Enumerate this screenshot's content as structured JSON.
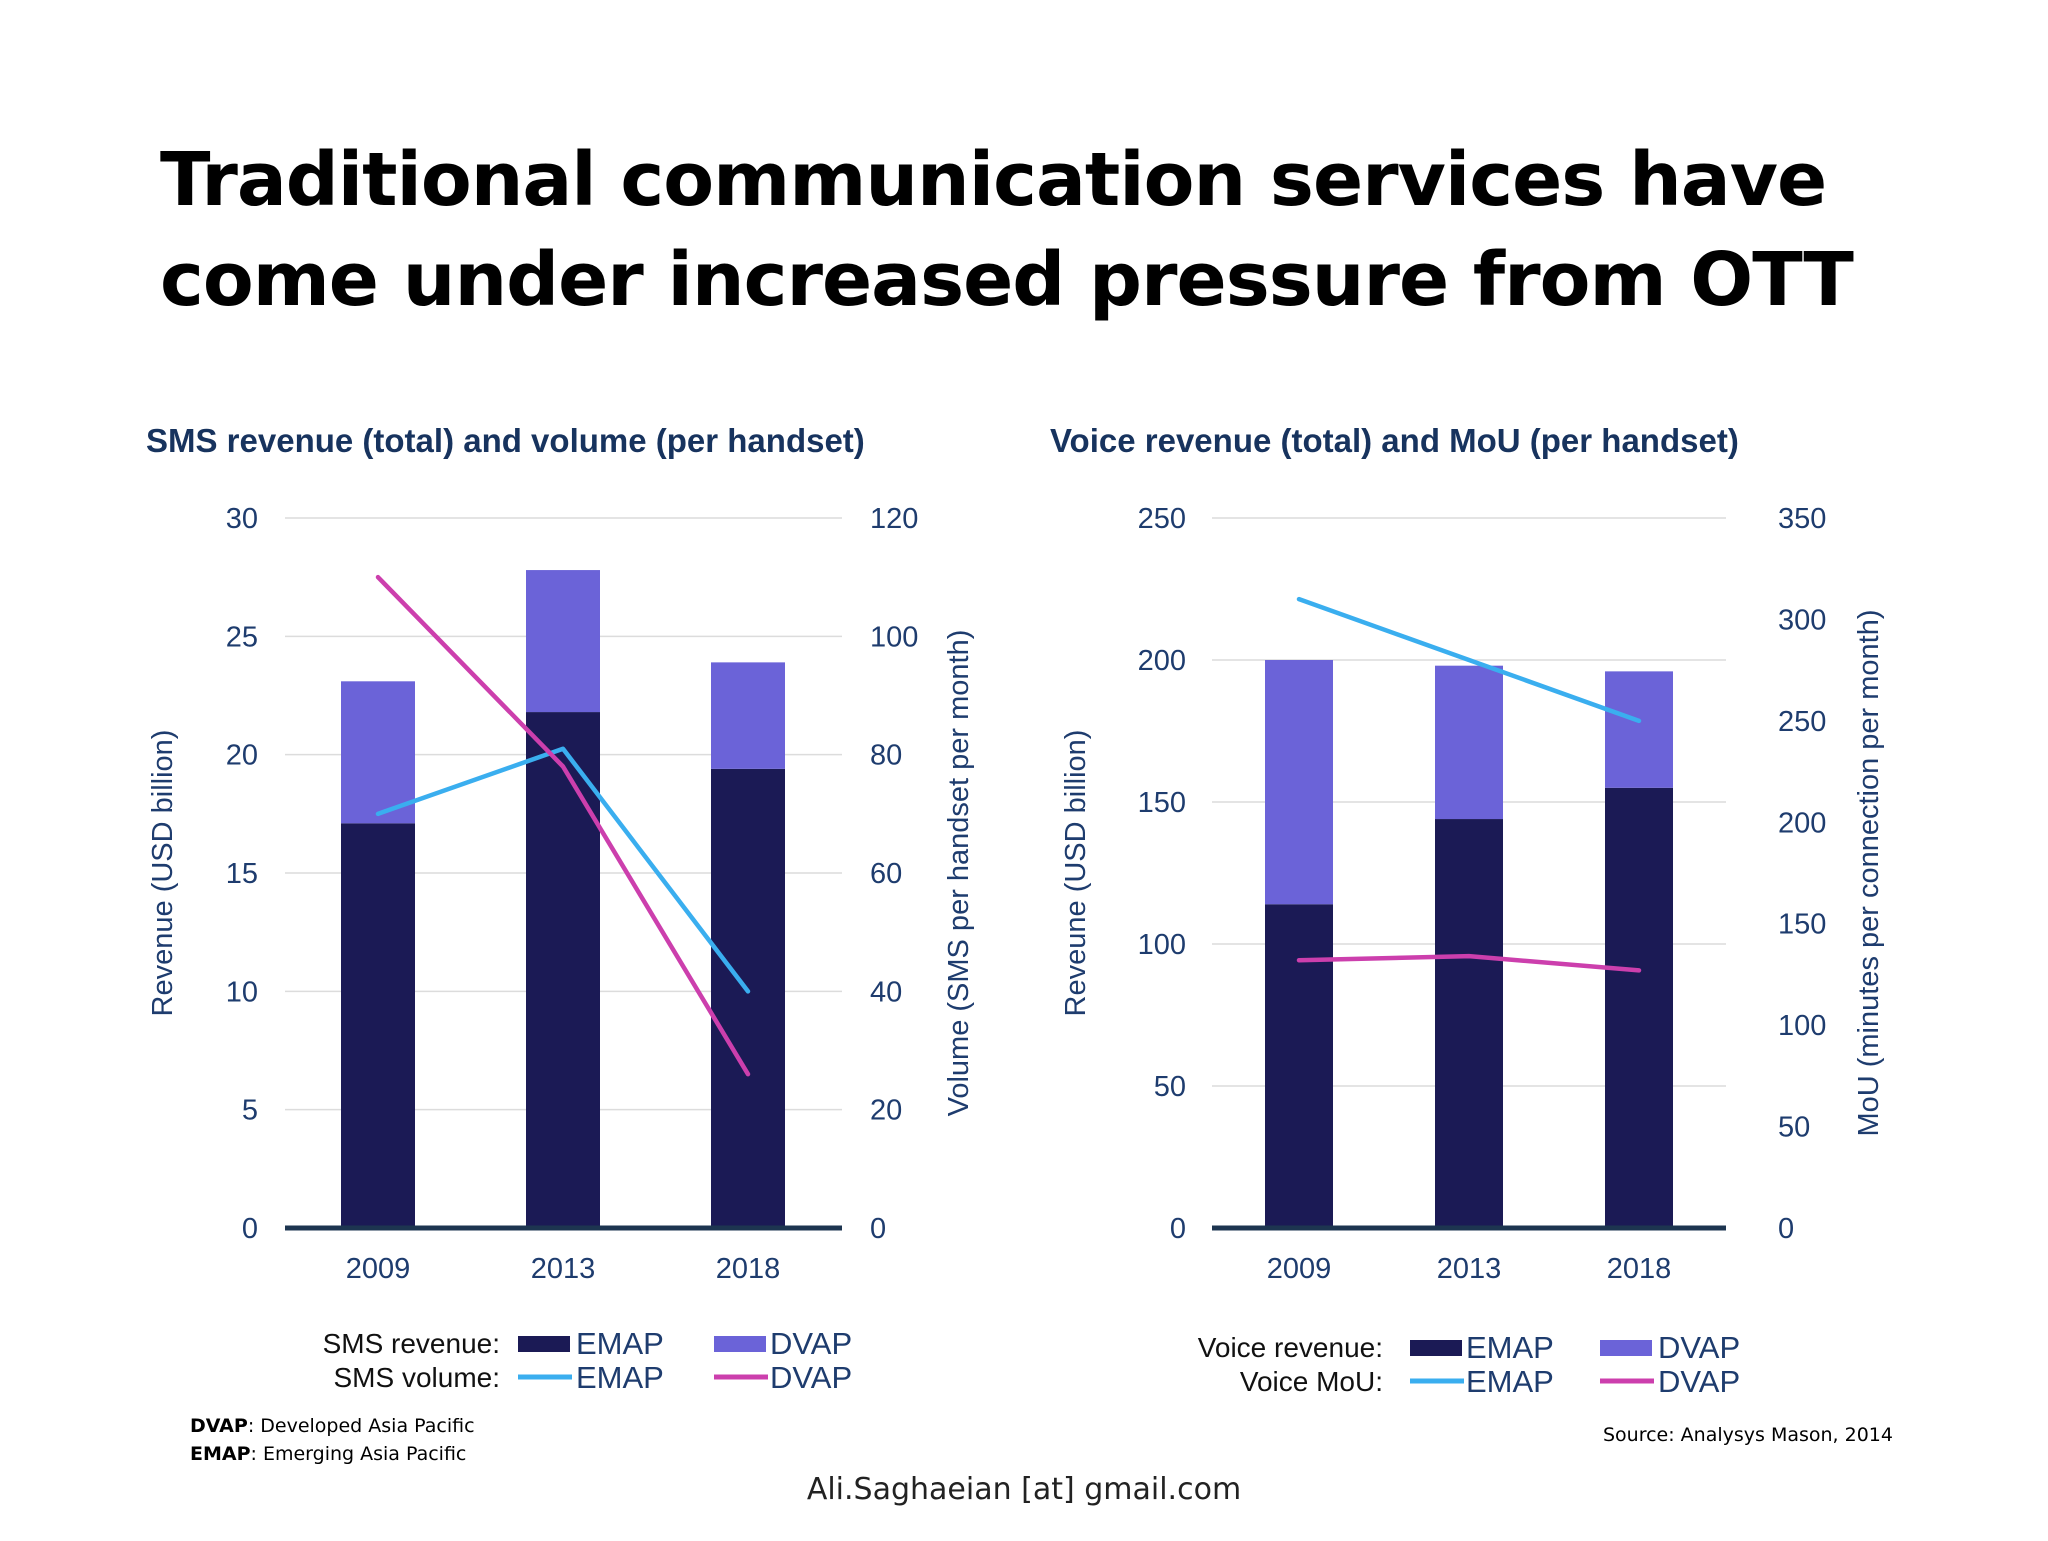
{
  "title": {
    "line1": "Traditional communication services have",
    "line2": "come under increased pressure from OTT"
  },
  "colors": {
    "emap_bar": "#1b1a55",
    "dvap_bar": "#6b63d8",
    "emap_line": "#3aaeef",
    "dvap_line": "#cc3fad",
    "title_blue": "#17335e",
    "axis_text": "#1e3c6e"
  },
  "chart_data": [
    {
      "type": "bar",
      "title": "SMS revenue (total) and volume (per handset)",
      "categories": [
        "2009",
        "2013",
        "2018"
      ],
      "ylabel": "Revenue (USD billion)",
      "y2label": "Volume (SMS per handset per month)",
      "ylim": [
        0,
        30
      ],
      "y2lim": [
        0,
        120
      ],
      "yticks": [
        "0",
        "5",
        "10",
        "15",
        "20",
        "25",
        "30"
      ],
      "y2ticks": [
        "0",
        "20",
        "40",
        "60",
        "80",
        "100",
        "120"
      ],
      "series": [
        {
          "name": "EMAP",
          "group": "SMS revenue:",
          "kind": "bar",
          "values": [
            17.1,
            21.8,
            19.4
          ]
        },
        {
          "name": "DVAP",
          "group": "SMS revenue:",
          "kind": "bar",
          "values": [
            6.0,
            6.0,
            4.5
          ]
        },
        {
          "name": "EMAP",
          "group": "SMS volume:",
          "kind": "line",
          "axis": "right",
          "values": [
            70,
            81,
            40
          ]
        },
        {
          "name": "DVAP",
          "group": "SMS volume:",
          "kind": "line",
          "axis": "right",
          "values": [
            110,
            78,
            26
          ]
        }
      ],
      "legend": {
        "row1_label": "SMS revenue:",
        "row2_label": "SMS volume:",
        "emap": "EMAP",
        "dvap": "DVAP"
      }
    },
    {
      "type": "bar",
      "title": "Voice revenue (total) and MoU (per handset)",
      "categories": [
        "2009",
        "2013",
        "2018"
      ],
      "ylabel": "Reveune (USD billion)",
      "y2label": "MoU (minutes per connection per month)",
      "ylim": [
        0,
        250
      ],
      "y2lim": [
        0,
        350
      ],
      "yticks": [
        "0",
        "50",
        "100",
        "150",
        "200",
        "250"
      ],
      "y2ticks": [
        "0",
        "50",
        "100",
        "150",
        "200",
        "250",
        "300",
        "350"
      ],
      "series": [
        {
          "name": "EMAP",
          "group": "Voice revenue:",
          "kind": "bar",
          "values": [
            114,
            144,
            155
          ]
        },
        {
          "name": "DVAP",
          "group": "Voice revenue:",
          "kind": "bar",
          "values": [
            86,
            54,
            41
          ]
        },
        {
          "name": "EMAP",
          "group": "Voice MoU:",
          "kind": "line",
          "axis": "right",
          "values": [
            310,
            280,
            250
          ]
        },
        {
          "name": "DVAP",
          "group": "Voice MoU:",
          "kind": "line",
          "axis": "right",
          "values": [
            132,
            134,
            127
          ]
        }
      ],
      "legend": {
        "row1_label": "Voice revenue:",
        "row2_label": "Voice MoU:",
        "emap": "EMAP",
        "dvap": "DVAP"
      }
    }
  ],
  "footnotes": {
    "dvap_abbr": "DVAP",
    "dvap_text": ": Developed Asia Pacific",
    "emap_abbr": "EMAP",
    "emap_text": ": Emerging Asia Pacific"
  },
  "source": "Source: Analysys Mason, 2014",
  "footer": "Ali.Saghaeian [at] gmail.com"
}
